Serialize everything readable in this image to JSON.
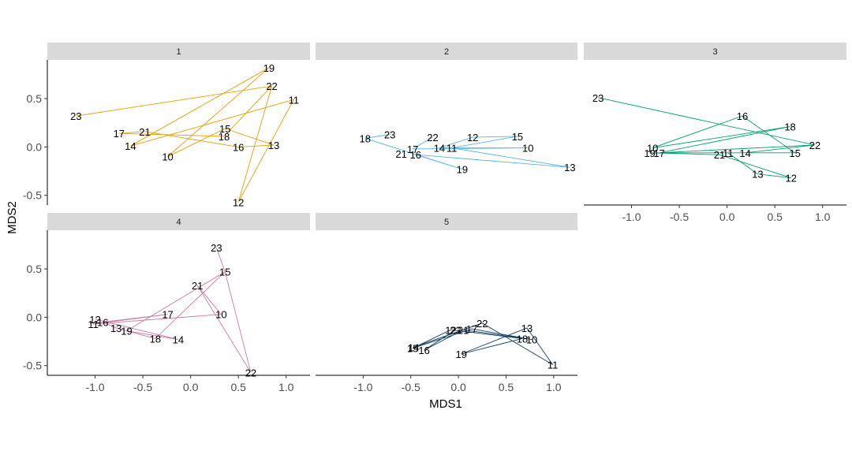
{
  "chart_data": {
    "type": "line",
    "xlabel": "MDS1",
    "ylabel": "MDS2",
    "xlim": [
      -1.5,
      1.25
    ],
    "ylim": [
      -0.6,
      0.9
    ],
    "x_ticks": [
      -1.0,
      -0.5,
      0.0,
      0.5,
      1.0
    ],
    "x_tick_labels": [
      "-1.0",
      "-0.5",
      "0.0",
      "0.5",
      "1.0"
    ],
    "y_ticks": [
      -0.5,
      0.0,
      0.5
    ],
    "y_tick_labels": [
      "-0.5",
      "0.0",
      "0.5"
    ],
    "grid": false,
    "legend": "none",
    "facets": [
      {
        "label": "1",
        "color": "#E69F00",
        "points": [
          {
            "id": "10",
            "x": -0.24,
            "y": -0.1
          },
          {
            "id": "11",
            "x": 1.08,
            "y": 0.49
          },
          {
            "id": "12",
            "x": 0.5,
            "y": -0.57
          },
          {
            "id": "13",
            "x": 0.87,
            "y": 0.02
          },
          {
            "id": "14",
            "x": -0.63,
            "y": 0.01
          },
          {
            "id": "15",
            "x": 0.36,
            "y": 0.19
          },
          {
            "id": "16",
            "x": 0.5,
            "y": 0.0
          },
          {
            "id": "17",
            "x": -0.75,
            "y": 0.14
          },
          {
            "id": "18",
            "x": 0.35,
            "y": 0.11
          },
          {
            "id": "19",
            "x": 0.82,
            "y": 0.82
          },
          {
            "id": "21",
            "x": -0.48,
            "y": 0.16
          },
          {
            "id": "22",
            "x": 0.85,
            "y": 0.63
          },
          {
            "id": "23",
            "x": -1.2,
            "y": 0.32
          }
        ],
        "path": [
          "23",
          "22",
          "18",
          "17",
          "21",
          "16",
          "13",
          "15",
          "10",
          "19",
          "14",
          "11",
          "12",
          "22"
        ]
      },
      {
        "label": "2",
        "color": "#56B4E9",
        "points": [
          {
            "id": "10",
            "x": 0.73,
            "y": -0.01
          },
          {
            "id": "11",
            "x": -0.07,
            "y": -0.01
          },
          {
            "id": "12",
            "x": 0.15,
            "y": 0.1
          },
          {
            "id": "13",
            "x": 1.17,
            "y": -0.21
          },
          {
            "id": "14",
            "x": -0.2,
            "y": -0.01
          },
          {
            "id": "15",
            "x": 0.62,
            "y": 0.11
          },
          {
            "id": "16",
            "x": -0.45,
            "y": -0.08
          },
          {
            "id": "17",
            "x": -0.48,
            "y": -0.02
          },
          {
            "id": "18",
            "x": -0.98,
            "y": 0.09
          },
          {
            "id": "19",
            "x": 0.04,
            "y": -0.23
          },
          {
            "id": "21",
            "x": -0.6,
            "y": -0.07
          },
          {
            "id": "22",
            "x": -0.27,
            "y": 0.1
          },
          {
            "id": "23",
            "x": -0.72,
            "y": 0.13
          }
        ],
        "path": [
          "23",
          "18",
          "19",
          "16",
          "13",
          "11",
          "15",
          "12",
          "14",
          "10",
          "17",
          "22"
        ]
      },
      {
        "label": "3",
        "color": "#009E73",
        "points": [
          {
            "id": "10",
            "x": -0.78,
            "y": -0.01
          },
          {
            "id": "11",
            "x": 0.01,
            "y": -0.06
          },
          {
            "id": "12",
            "x": 0.67,
            "y": -0.32
          },
          {
            "id": "13",
            "x": 0.32,
            "y": -0.28
          },
          {
            "id": "14",
            "x": 0.19,
            "y": -0.06
          },
          {
            "id": "15",
            "x": 0.71,
            "y": -0.06
          },
          {
            "id": "16",
            "x": 0.16,
            "y": 0.32
          },
          {
            "id": "17",
            "x": -0.71,
            "y": -0.06
          },
          {
            "id": "18",
            "x": 0.66,
            "y": 0.21
          },
          {
            "id": "19",
            "x": -0.81,
            "y": -0.06
          },
          {
            "id": "21",
            "x": -0.08,
            "y": -0.08
          },
          {
            "id": "22",
            "x": 0.92,
            "y": 0.02
          },
          {
            "id": "23",
            "x": -1.35,
            "y": 0.51
          }
        ],
        "path": [
          "23",
          "22",
          "17",
          "18",
          "10",
          "16",
          "15",
          "11",
          "13",
          "12",
          "21",
          "19",
          "14",
          "22",
          "17"
        ]
      },
      {
        "label": "4",
        "color": "#CC79A7",
        "points": [
          {
            "id": "10",
            "x": 0.32,
            "y": 0.03
          },
          {
            "id": "11",
            "x": -1.02,
            "y": -0.07
          },
          {
            "id": "12",
            "x": -1.0,
            "y": -0.02
          },
          {
            "id": "13",
            "x": -0.78,
            "y": -0.11
          },
          {
            "id": "14",
            "x": -0.13,
            "y": -0.23
          },
          {
            "id": "15",
            "x": 0.36,
            "y": 0.47
          },
          {
            "id": "16",
            "x": -0.92,
            "y": -0.05
          },
          {
            "id": "17",
            "x": -0.24,
            "y": 0.03
          },
          {
            "id": "18",
            "x": -0.37,
            "y": -0.22
          },
          {
            "id": "19",
            "x": -0.67,
            "y": -0.14
          },
          {
            "id": "21",
            "x": 0.07,
            "y": 0.33
          },
          {
            "id": "22",
            "x": 0.63,
            "y": -0.57
          },
          {
            "id": "23",
            "x": 0.27,
            "y": 0.72
          }
        ],
        "path": [
          "23",
          "15",
          "22",
          "21",
          "10",
          "11",
          "17",
          "16",
          "13",
          "18",
          "15",
          "19",
          "14",
          "12"
        ]
      },
      {
        "label": "5",
        "color": "#0F3D63",
        "points": [
          {
            "id": "10",
            "x": 0.77,
            "y": -0.23
          },
          {
            "id": "11",
            "x": 0.99,
            "y": -0.49
          },
          {
            "id": "12",
            "x": -0.08,
            "y": -0.13
          },
          {
            "id": "13",
            "x": 0.72,
            "y": -0.11
          },
          {
            "id": "14",
            "x": -0.47,
            "y": -0.31
          },
          {
            "id": "15",
            "x": -0.48,
            "y": -0.32
          },
          {
            "id": "16",
            "x": -0.36,
            "y": -0.34
          },
          {
            "id": "17",
            "x": 0.14,
            "y": -0.12
          },
          {
            "id": "18",
            "x": 0.67,
            "y": -0.22
          },
          {
            "id": "19",
            "x": 0.03,
            "y": -0.38
          },
          {
            "id": "21",
            "x": 0.05,
            "y": -0.13
          },
          {
            "id": "22",
            "x": 0.25,
            "y": -0.06
          },
          {
            "id": "23",
            "x": -0.03,
            "y": -0.13
          }
        ],
        "path": [
          "14",
          "22",
          "11",
          "13",
          "19",
          "18",
          "12",
          "15",
          "17",
          "10",
          "21",
          "16",
          "23"
        ]
      }
    ]
  }
}
